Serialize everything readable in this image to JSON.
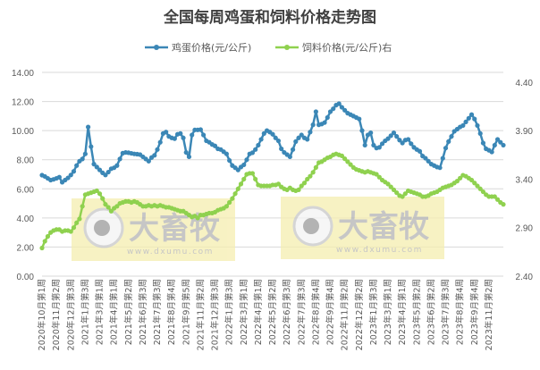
{
  "chart_data": {
    "type": "line",
    "title": "全国每周鸡蛋和饲料价格走势图",
    "x_tick_labels": [
      "2020年10月第1周",
      "2020年11月第2周",
      "2020年12月第3周",
      "2021年1月第3周",
      "2021年3月第1周",
      "2021年4月第1周",
      "2021年5月第2周",
      "2021年6月第3周",
      "2021年7月第3周",
      "2021年8月第4周",
      "2021年9月第5周",
      "2021年11月第2周",
      "2021年12月第3周",
      "2022年1月第3周",
      "2022年3月第1周",
      "2022年4月第1周",
      "2022年5月第2周",
      "2022年6月第3周",
      "2022年7月第3周",
      "2022年8月第4周",
      "2022年9月第4周",
      "2022年11月第2周",
      "2022年12月第2周",
      "2023年1月第3周",
      "2023年3月第1周",
      "2023年4月第1周",
      "2023年5月第2周",
      "2023年6月第2周",
      "2023年7月第3周",
      "2023年8月第4周",
      "2023年9月第4周",
      "2023年11月第2周"
    ],
    "y_left": {
      "ylim": [
        0,
        14
      ],
      "ticks": [
        "0.00",
        "2.00",
        "4.00",
        "6.00",
        "8.00",
        "10.00",
        "12.00",
        "14.00"
      ]
    },
    "y_right": {
      "ylim": [
        2.4,
        4.5
      ],
      "ticks": [
        "2.40",
        "2.90",
        "3.40",
        "3.90",
        "4.40"
      ]
    },
    "grid": true,
    "legend_position": "top",
    "series": [
      {
        "name": "鸡蛋价格(元/公斤)",
        "axis": "left",
        "color": "#3b87b6",
        "values": [
          6.94,
          6.85,
          6.72,
          6.6,
          6.65,
          6.72,
          6.8,
          6.45,
          6.6,
          6.75,
          6.95,
          7.2,
          7.6,
          7.9,
          8.05,
          8.4,
          10.25,
          8.9,
          7.7,
          7.5,
          7.3,
          7.1,
          6.95,
          7.15,
          7.38,
          7.45,
          7.6,
          8.05,
          8.45,
          8.5,
          8.48,
          8.44,
          8.4,
          8.38,
          8.35,
          8.2,
          8.05,
          7.9,
          8.15,
          8.3,
          8.7,
          9.2,
          9.8,
          9.9,
          9.6,
          9.5,
          9.45,
          9.75,
          9.8,
          9.5,
          8.5,
          8.2,
          9.7,
          10.05,
          10.05,
          10.07,
          9.7,
          9.3,
          9.2,
          9.05,
          8.95,
          8.75,
          8.7,
          8.55,
          8.4,
          7.95,
          7.6,
          7.45,
          7.3,
          7.5,
          7.65,
          8.0,
          8.4,
          8.48,
          8.7,
          9.0,
          9.4,
          9.8,
          10.0,
          9.9,
          9.75,
          9.5,
          9.3,
          8.75,
          8.5,
          8.35,
          8.2,
          8.7,
          9.25,
          9.5,
          9.7,
          9.5,
          9.4,
          9.9,
          10.4,
          11.3,
          10.4,
          10.45,
          10.55,
          10.9,
          11.3,
          11.5,
          11.75,
          11.85,
          11.6,
          11.4,
          11.2,
          11.1,
          11.0,
          10.9,
          10.8,
          10.0,
          9.0,
          9.7,
          9.85,
          9.0,
          8.8,
          8.85,
          9.1,
          9.3,
          9.45,
          9.65,
          9.85,
          9.6,
          9.35,
          9.15,
          9.35,
          9.4,
          9.1,
          8.85,
          8.7,
          8.58,
          8.25,
          8.1,
          7.9,
          7.7,
          7.6,
          7.5,
          7.45,
          8.1,
          8.8,
          9.25,
          9.6,
          9.95,
          10.1,
          10.25,
          10.35,
          10.6,
          10.85,
          11.1,
          10.8,
          10.35,
          9.8,
          9.15,
          8.75,
          8.65,
          8.53,
          9.0,
          9.4,
          9.2,
          9.0
        ]
      },
      {
        "name": "饲料价格(元/公斤)右",
        "axis": "right",
        "color": "#8fd14f",
        "values": [
          2.69,
          2.76,
          2.81,
          2.85,
          2.87,
          2.88,
          2.88,
          2.86,
          2.87,
          2.87,
          2.86,
          2.9,
          2.95,
          2.99,
          3.12,
          3.24,
          3.25,
          3.26,
          3.27,
          3.28,
          3.25,
          3.2,
          3.14,
          3.11,
          3.07,
          3.1,
          3.12,
          3.15,
          3.16,
          3.17,
          3.17,
          3.16,
          3.17,
          3.16,
          3.14,
          3.12,
          3.12,
          3.13,
          3.12,
          3.13,
          3.12,
          3.13,
          3.12,
          3.11,
          3.11,
          3.1,
          3.09,
          3.08,
          3.07,
          3.07,
          3.05,
          3.03,
          3.01,
          3.02,
          3.0,
          3.03,
          3.03,
          3.04,
          3.05,
          3.05,
          3.06,
          3.08,
          3.09,
          3.1,
          3.12,
          3.16,
          3.2,
          3.25,
          3.3,
          3.35,
          3.4,
          3.45,
          3.46,
          3.46,
          3.4,
          3.34,
          3.33,
          3.33,
          3.33,
          3.33,
          3.34,
          3.34,
          3.35,
          3.32,
          3.3,
          3.29,
          3.31,
          3.29,
          3.28,
          3.29,
          3.33,
          3.36,
          3.4,
          3.43,
          3.47,
          3.52,
          3.57,
          3.58,
          3.6,
          3.62,
          3.63,
          3.65,
          3.66,
          3.65,
          3.64,
          3.61,
          3.58,
          3.55,
          3.52,
          3.5,
          3.49,
          3.48,
          3.47,
          3.48,
          3.47,
          3.46,
          3.45,
          3.42,
          3.39,
          3.37,
          3.35,
          3.32,
          3.29,
          3.26,
          3.23,
          3.22,
          3.25,
          3.28,
          3.27,
          3.26,
          3.25,
          3.24,
          3.22,
          3.22,
          3.23,
          3.25,
          3.26,
          3.27,
          3.29,
          3.31,
          3.32,
          3.33,
          3.34,
          3.36,
          3.38,
          3.41,
          3.44,
          3.43,
          3.41,
          3.39,
          3.36,
          3.33,
          3.3,
          3.27,
          3.24,
          3.22,
          3.22,
          3.22,
          3.19,
          3.16,
          3.14
        ]
      }
    ]
  },
  "watermark": {
    "brand": "大畜牧",
    "url": "www.dxumu.com"
  }
}
